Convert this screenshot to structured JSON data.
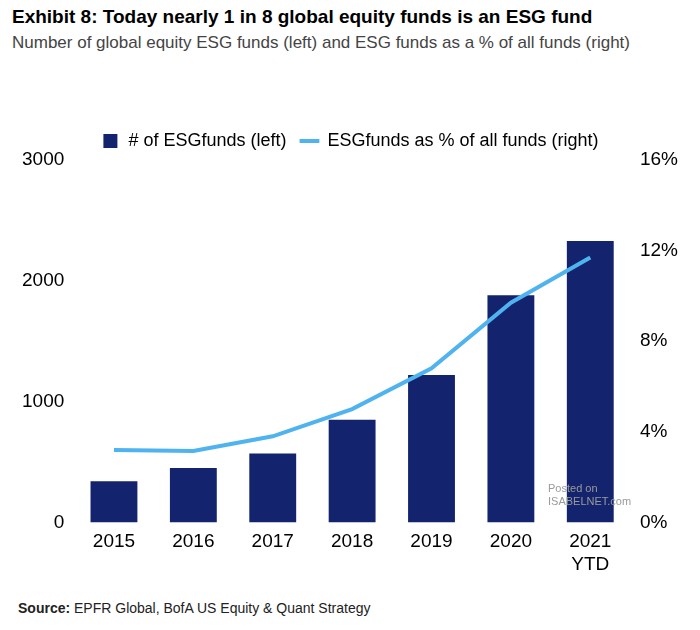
{
  "chart_data": {
    "type": "bar",
    "title": "Exhibit 8: Today nearly 1 in 8 global equity funds is an ESG fund",
    "subtitle": "Number of global equity ESG funds (left) and ESG funds as a % of all funds (right)",
    "source_label": "Source:",
    "source": "EPFR Global, BofA US Equity & Quant Strategy",
    "annotations": [
      "Posted on",
      "ISABELNET.com"
    ],
    "categories": [
      "2015",
      "2016",
      "2017",
      "2018",
      "2019",
      "2020",
      "2021 YTD"
    ],
    "series": [
      {
        "name": "# of ESGfunds (left)",
        "type": "bar",
        "color": "#14236e",
        "values": [
          340,
          450,
          570,
          850,
          1220,
          1880,
          2330
        ]
      },
      {
        "name": "ESGfunds as % of all funds (right)",
        "type": "line",
        "color": "#4fb3ef",
        "axis": "y2",
        "marker": "none",
        "line_style": "solid",
        "values": [
          3.2,
          3.15,
          3.8,
          5.0,
          6.8,
          9.7,
          11.7
        ]
      }
    ],
    "ylim": [
      0,
      3000
    ],
    "yticks": [
      0,
      1000,
      2000,
      3000
    ],
    "y2lim": [
      0,
      16
    ],
    "y2ticks": [
      {
        "value": 0,
        "label": "0%"
      },
      {
        "value": 4,
        "label": "4%"
      },
      {
        "value": 8,
        "label": "8%"
      },
      {
        "value": 12,
        "label": "12%"
      },
      {
        "value": 16,
        "label": "16%"
      }
    ],
    "grid": false,
    "legend": "top"
  }
}
